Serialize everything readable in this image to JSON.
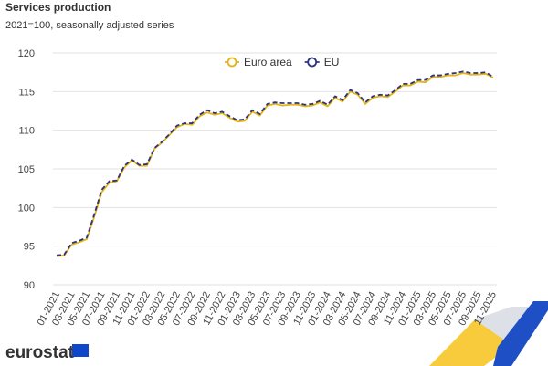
{
  "chart_data": {
    "type": "line",
    "title": "Services production",
    "subtitle": "2021=100, seasonally adjusted series",
    "logo_text": "eurostat",
    "categories": [
      "01-2021",
      null,
      "03-2021",
      null,
      "05-2021",
      null,
      "07-2021",
      null,
      "09-2021",
      null,
      "11-2021",
      null,
      "01-2022",
      null,
      "03-2022",
      null,
      "05-2022",
      null,
      "07-2022",
      null,
      "09-2022",
      null,
      "11-2022",
      null,
      "01-2023",
      null,
      "03-2023",
      null,
      "05-2023",
      null,
      "07-2023",
      null,
      "09-2023",
      null,
      "11-2023",
      null,
      "01-2024",
      null,
      "03-2024",
      null,
      "05-2024",
      null,
      "07-2024",
      null,
      "09-2024",
      null,
      "11-2024",
      null,
      "01-2025",
      null,
      "03-2025",
      null,
      "05-2025",
      null,
      "07-2025",
      null,
      "09-2025",
      null,
      "11-2025"
    ],
    "series": [
      {
        "name": "Euro area",
        "color": "#e6b412",
        "dashed": false,
        "values": [
          93.7,
          93.8,
          95.2,
          95.5,
          95.9,
          98.8,
          102.0,
          103.2,
          103.4,
          105.2,
          106.1,
          105.4,
          105.4,
          107.6,
          108.4,
          109.4,
          110.4,
          110.8,
          110.7,
          111.8,
          112.3,
          112.0,
          112.2,
          111.6,
          111.1,
          111.2,
          112.4,
          111.9,
          113.2,
          113.4,
          113.2,
          113.3,
          113.3,
          113.1,
          113.2,
          113.6,
          113.1,
          114.2,
          113.7,
          115.0,
          114.6,
          113.4,
          114.2,
          114.4,
          114.3,
          115.0,
          115.8,
          115.8,
          116.3,
          116.2,
          116.9,
          116.9,
          117.1,
          117.1,
          117.4,
          117.2,
          117.2,
          117.3,
          116.8
        ]
      },
      {
        "name": "EU",
        "color": "#2a3580",
        "dashed": true,
        "values": [
          93.8,
          93.9,
          95.4,
          95.7,
          96.1,
          99.1,
          102.3,
          103.4,
          103.5,
          105.4,
          106.2,
          105.5,
          105.6,
          107.7,
          108.5,
          109.5,
          110.6,
          110.9,
          110.9,
          112.0,
          112.6,
          112.2,
          112.4,
          111.8,
          111.3,
          111.4,
          112.6,
          112.1,
          113.4,
          113.6,
          113.5,
          113.5,
          113.5,
          113.3,
          113.4,
          113.8,
          113.3,
          114.4,
          113.9,
          115.2,
          114.8,
          113.6,
          114.4,
          114.6,
          114.5,
          115.2,
          116.0,
          116.0,
          116.5,
          116.5,
          117.1,
          117.1,
          117.3,
          117.4,
          117.6,
          117.4,
          117.4,
          117.5,
          116.9
        ]
      }
    ],
    "ylim": [
      90,
      120
    ],
    "yticks": [
      90,
      95,
      100,
      105,
      110,
      115,
      120
    ],
    "grid": true,
    "legend": "top"
  }
}
